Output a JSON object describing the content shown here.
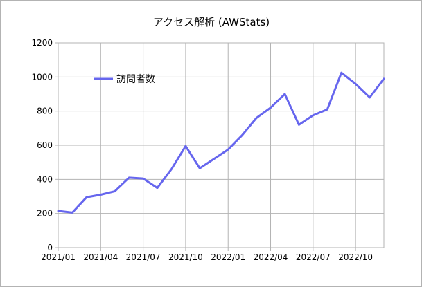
{
  "chart_data": {
    "type": "line",
    "title": "アクセス解析 (AWStats)",
    "xlabel": "",
    "ylabel": "",
    "ylim": [
      0,
      1200
    ],
    "yticks": [
      0,
      200,
      400,
      600,
      800,
      1000,
      1200
    ],
    "x": [
      "2021/01",
      "2021/02",
      "2021/03",
      "2021/04",
      "2021/05",
      "2021/06",
      "2021/07",
      "2021/08",
      "2021/09",
      "2021/10",
      "2021/11",
      "2021/12",
      "2022/01",
      "2022/02",
      "2022/03",
      "2022/04",
      "2022/05",
      "2022/06",
      "2022/07",
      "2022/08",
      "2022/09",
      "2022/10",
      "2022/11",
      "2022/12"
    ],
    "xtick_labels": [
      "2021/01",
      "2021/04",
      "2021/07",
      "2021/10",
      "2022/01",
      "2022/04",
      "2022/07",
      "2022/10"
    ],
    "series": [
      {
        "name": "訪問者数",
        "color": "#6666ee",
        "values": [
          215,
          205,
          295,
          310,
          330,
          410,
          405,
          350,
          460,
          595,
          465,
          520,
          575,
          660,
          760,
          820,
          900,
          720,
          775,
          810,
          1025,
          960,
          880,
          990
        ]
      }
    ],
    "grid": true,
    "legend_position": "inside-top-left"
  }
}
